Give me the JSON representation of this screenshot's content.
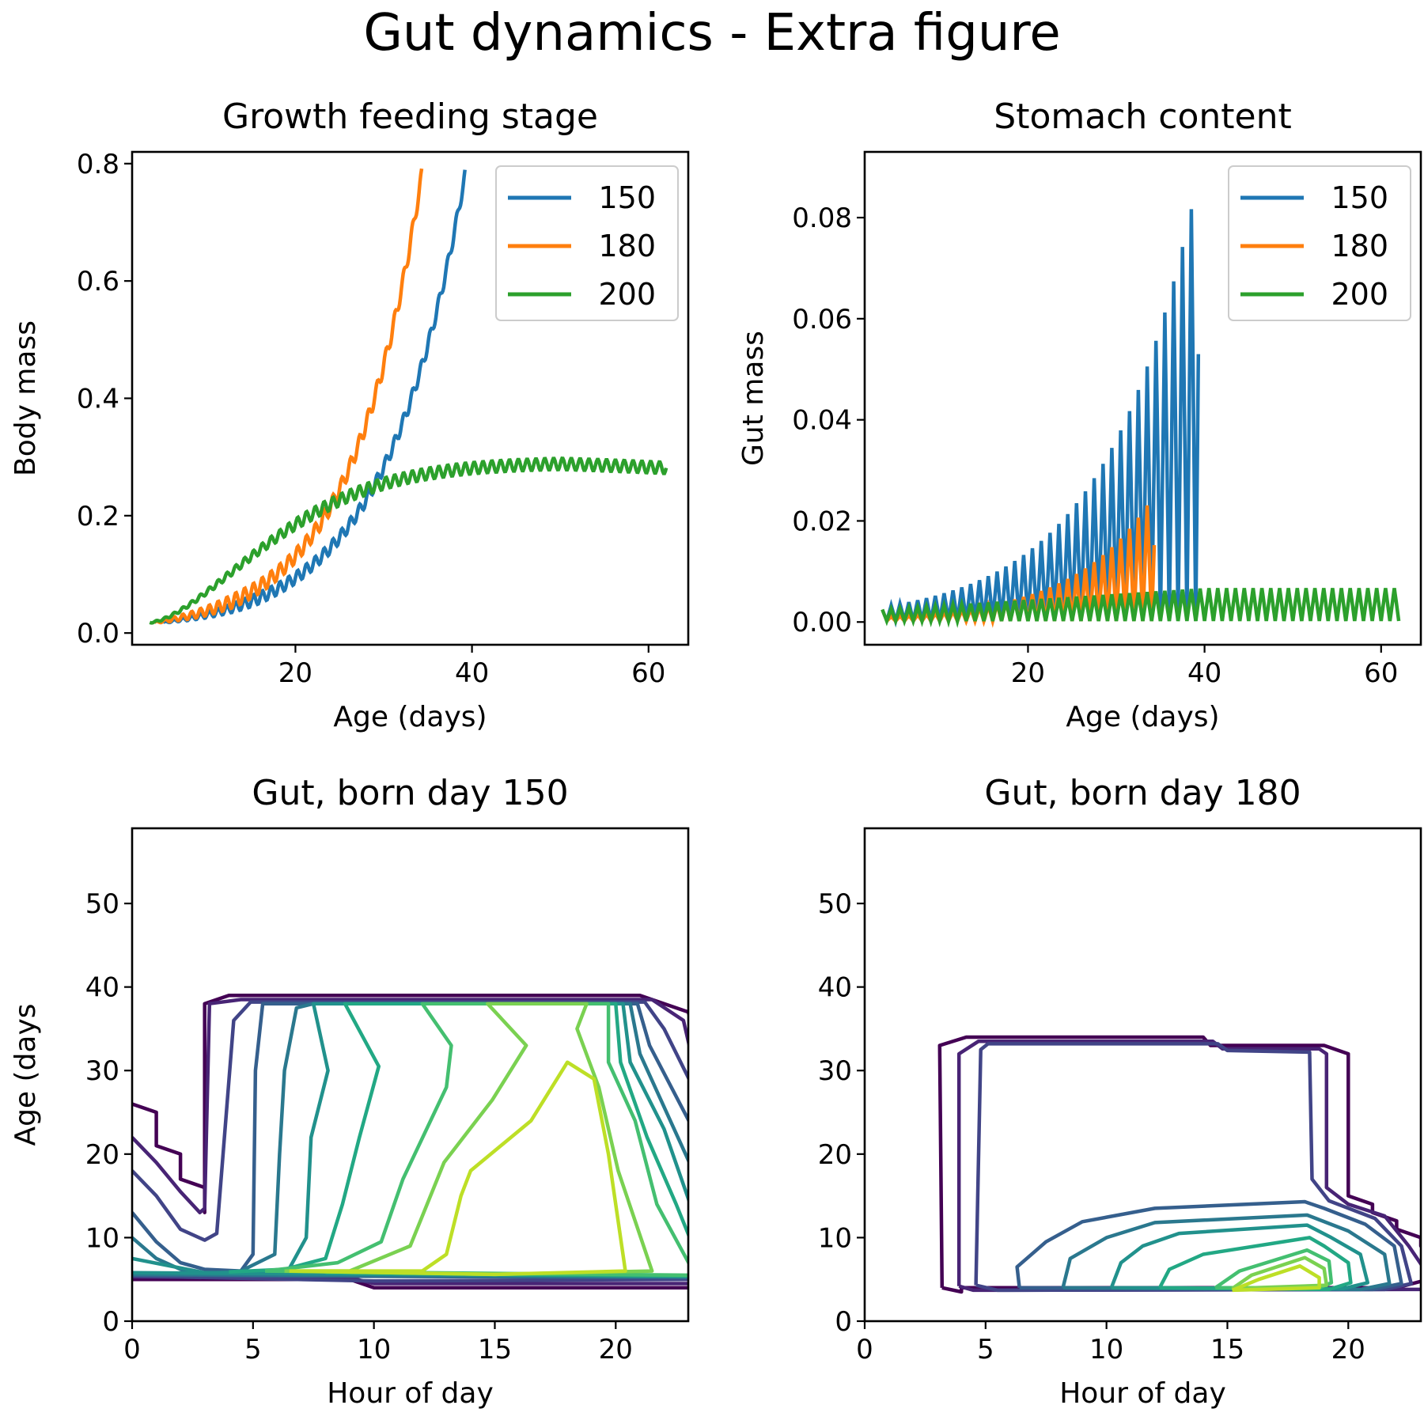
{
  "figure_title": "Gut dynamics - Extra figure",
  "colors": {
    "c150": "#1f77b4",
    "c180": "#ff7f0e",
    "c200": "#2ca02c"
  },
  "chart_data": [
    {
      "type": "line",
      "title": "Growth feeding stage",
      "xlabel": "Age (days)",
      "ylabel": "Body mass",
      "xlim": [
        1.5,
        64.5
      ],
      "ylim": [
        -0.02,
        0.82
      ],
      "xticks": [
        20,
        40,
        60
      ],
      "yticks": [
        0.0,
        0.2,
        0.4,
        0.6,
        0.8
      ],
      "ytick_labels": [
        "0.0",
        "0.2",
        "0.4",
        "0.6",
        "0.8"
      ],
      "legend": "top-right",
      "series": [
        {
          "name": "150",
          "color_key": "c150",
          "x_start": 5,
          "x_end": 39.2,
          "y_start": 0.018,
          "y_end": 0.78,
          "curve": "exp",
          "oscillation": 0.01
        },
        {
          "name": "180",
          "color_key": "c180",
          "x_start": 4,
          "x_end": 34.3,
          "y_start": 0.018,
          "y_end": 0.78,
          "curve": "exp",
          "oscillation": 0.012
        },
        {
          "name": "200",
          "color_key": "c200",
          "x_start": 3.5,
          "x_end": 62,
          "curve": "logistic",
          "plateau": 0.29,
          "oscillation": 0.01
        }
      ]
    },
    {
      "type": "line",
      "title": "Stomach content",
      "xlabel": "Age (days)",
      "ylabel": "Gut mass",
      "xlim": [
        1.5,
        64.5
      ],
      "ylim": [
        -0.0045,
        0.093
      ],
      "xticks": [
        20,
        40,
        60
      ],
      "yticks": [
        0.0,
        0.02,
        0.04,
        0.06,
        0.08
      ],
      "ytick_labels": [
        "0.00",
        "0.02",
        "0.04",
        "0.06",
        "0.08"
      ],
      "legend": "top-right",
      "series": [
        {
          "name": "150",
          "color_key": "c150",
          "x_start": 4,
          "x_end": 39.3,
          "peak_end": 0.088
        },
        {
          "name": "180",
          "color_key": "c180",
          "x_start": 4,
          "x_end": 34.3,
          "peak_end": 0.025
        },
        {
          "name": "200",
          "color_key": "c200",
          "x_start": 3.5,
          "x_end": 62,
          "peak_end": 0.0065
        }
      ]
    },
    {
      "type": "contour",
      "title": "Gut, born day 150",
      "xlabel": "Hour of day",
      "ylabel": "Age (days",
      "xlim": [
        0,
        23
      ],
      "ylim": [
        0,
        59
      ],
      "xticks": [
        0,
        5,
        10,
        15,
        20
      ],
      "yticks": [
        0,
        10,
        20,
        30,
        40,
        50
      ],
      "levels": [
        "#440154",
        "#482475",
        "#414487",
        "#355f8d",
        "#2a788e",
        "#21918c",
        "#22a884",
        "#44bf70",
        "#7ad151",
        "#bddf26"
      ]
    },
    {
      "type": "contour",
      "title": "Gut, born day 180",
      "xlabel": "Hour of day",
      "ylabel": "",
      "xlim": [
        0,
        23
      ],
      "ylim": [
        0,
        59
      ],
      "xticks": [
        0,
        5,
        10,
        15,
        20
      ],
      "yticks": [
        0,
        10,
        20,
        30,
        40,
        50
      ],
      "levels": [
        "#440154",
        "#482475",
        "#414487",
        "#355f8d",
        "#2a788e",
        "#21918c",
        "#22a884",
        "#44bf70",
        "#7ad151",
        "#bddf26"
      ]
    }
  ]
}
